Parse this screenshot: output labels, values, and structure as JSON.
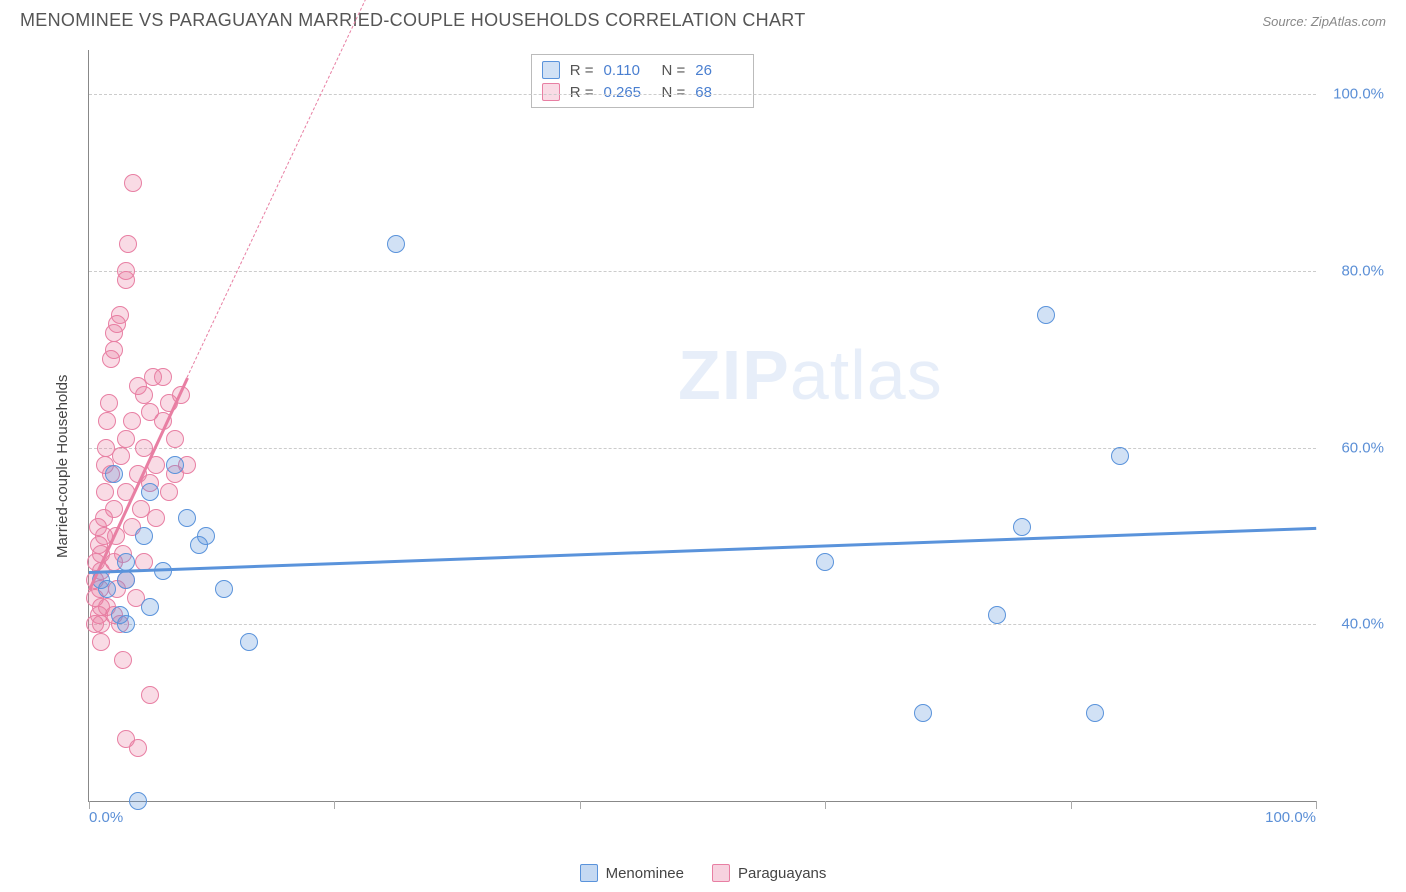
{
  "title": "MENOMINEE VS PARAGUAYAN MARRIED-COUPLE HOUSEHOLDS CORRELATION CHART",
  "source": "Source: ZipAtlas.com",
  "watermark_a": "ZIP",
  "watermark_b": "atlas",
  "chart": {
    "type": "scatter",
    "background_color": "#ffffff",
    "grid_color": "#cccccc",
    "axis_color": "#888888",
    "tick_label_color": "#5b8fd6",
    "label_color": "#444444",
    "title_fontsize": 18,
    "tick_fontsize": 15,
    "label_fontsize": 15,
    "xlim": [
      0,
      100
    ],
    "ylim": [
      20,
      105
    ],
    "y_gridlines": [
      40,
      60,
      80,
      100
    ],
    "y_tick_labels": [
      "40.0%",
      "60.0%",
      "80.0%",
      "100.0%"
    ],
    "x_ticks": [
      0,
      20,
      40,
      60,
      80,
      100
    ],
    "x_tick_labels": [
      "0.0%",
      "100.0%"
    ],
    "x_tick_label_positions": [
      0,
      100
    ],
    "ylabel": "Married-couple Households",
    "marker_radius": 9,
    "marker_stroke_width": 1.4,
    "marker_fill_opacity": 0.28,
    "series": [
      {
        "name": "Menominee",
        "color": "#5a93db",
        "fill": "rgba(90,147,219,0.28)",
        "R": "0.110",
        "N": "26",
        "trend": {
          "x1": 0,
          "y1": 46,
          "x2": 100,
          "y2": 51,
          "dashed_after_x": 100,
          "width": 2.5
        },
        "points": [
          [
            1,
            45
          ],
          [
            1.5,
            44
          ],
          [
            2,
            57
          ],
          [
            2.5,
            41
          ],
          [
            3,
            40
          ],
          [
            3,
            45
          ],
          [
            3,
            47
          ],
          [
            4,
            20
          ],
          [
            4.5,
            50
          ],
          [
            5,
            42
          ],
          [
            5,
            55
          ],
          [
            6,
            46
          ],
          [
            7,
            58
          ],
          [
            8,
            52
          ],
          [
            9,
            49
          ],
          [
            9.5,
            50
          ],
          [
            11,
            44
          ],
          [
            13,
            38
          ],
          [
            25,
            83
          ],
          [
            60,
            47
          ],
          [
            68,
            30
          ],
          [
            74,
            41
          ],
          [
            76,
            51
          ],
          [
            78,
            75
          ],
          [
            82,
            30
          ],
          [
            84,
            59
          ]
        ]
      },
      {
        "name": "Paraguayans",
        "color": "#e87fa3",
        "fill": "rgba(232,127,163,0.28)",
        "R": "0.265",
        "N": "68",
        "trend": {
          "x1": 0,
          "y1": 44,
          "x2": 8,
          "y2": 68,
          "dashed_to_x": 25,
          "dashed_to_y": 118,
          "width": 2.5
        },
        "points": [
          [
            0.5,
            40
          ],
          [
            0.5,
            43
          ],
          [
            0.5,
            45
          ],
          [
            0.6,
            47
          ],
          [
            0.7,
            51
          ],
          [
            0.8,
            41
          ],
          [
            0.8,
            49
          ],
          [
            0.9,
            44
          ],
          [
            1,
            38
          ],
          [
            1,
            40
          ],
          [
            1,
            42
          ],
          [
            1,
            46
          ],
          [
            1,
            48
          ],
          [
            1.2,
            50
          ],
          [
            1.2,
            52
          ],
          [
            1.3,
            55
          ],
          [
            1.3,
            58
          ],
          [
            1.4,
            60
          ],
          [
            1.5,
            42
          ],
          [
            1.5,
            63
          ],
          [
            1.6,
            65
          ],
          [
            1.8,
            57
          ],
          [
            1.8,
            70
          ],
          [
            2,
            41
          ],
          [
            2,
            47
          ],
          [
            2,
            53
          ],
          [
            2,
            71
          ],
          [
            2,
            73
          ],
          [
            2.2,
            50
          ],
          [
            2.3,
            44
          ],
          [
            2.3,
            74
          ],
          [
            2.5,
            75
          ],
          [
            2.5,
            40
          ],
          [
            2.6,
            59
          ],
          [
            2.8,
            36
          ],
          [
            2.8,
            48
          ],
          [
            3,
            45
          ],
          [
            3,
            55
          ],
          [
            3,
            61
          ],
          [
            3,
            79
          ],
          [
            3,
            80
          ],
          [
            3.2,
            83
          ],
          [
            3.5,
            51
          ],
          [
            3.5,
            63
          ],
          [
            3.6,
            90
          ],
          [
            3.8,
            43
          ],
          [
            4,
            57
          ],
          [
            4,
            67
          ],
          [
            4.2,
            53
          ],
          [
            4.5,
            47
          ],
          [
            4.5,
            60
          ],
          [
            4.5,
            66
          ],
          [
            5,
            56
          ],
          [
            5,
            64
          ],
          [
            5,
            32
          ],
          [
            5.2,
            68
          ],
          [
            5.5,
            52
          ],
          [
            5.5,
            58
          ],
          [
            6,
            63
          ],
          [
            6,
            68
          ],
          [
            6.5,
            55
          ],
          [
            6.5,
            65
          ],
          [
            7,
            57
          ],
          [
            7,
            61
          ],
          [
            7.5,
            66
          ],
          [
            8,
            58
          ],
          [
            3,
            27
          ],
          [
            4,
            26
          ]
        ]
      }
    ],
    "legend": {
      "items": [
        {
          "label": "Menominee",
          "color": "#5a93db",
          "fill": "rgba(90,147,219,0.35)"
        },
        {
          "label": "Paraguayans",
          "color": "#e87fa3",
          "fill": "rgba(232,127,163,0.35)"
        }
      ]
    }
  }
}
